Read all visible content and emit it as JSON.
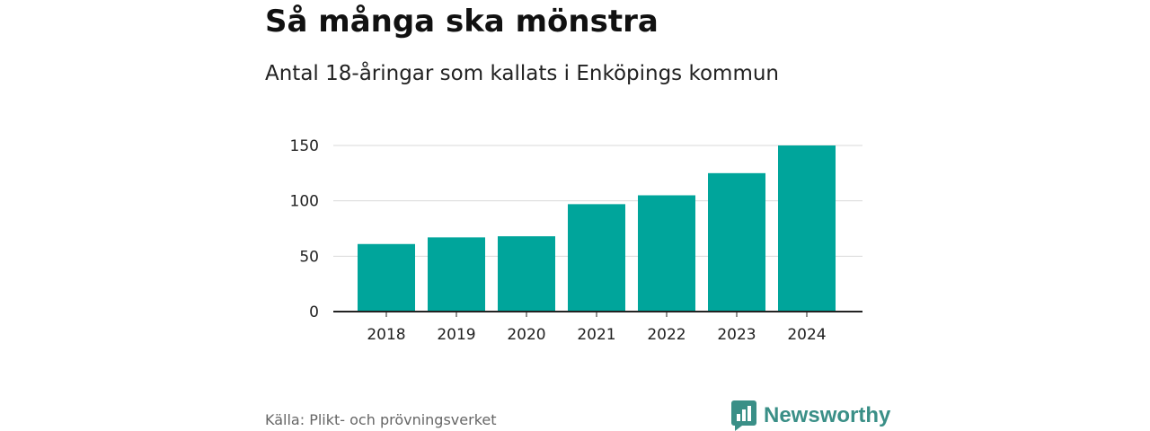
{
  "header": {
    "title": "Så många ska mönstra",
    "subtitle": "Antal 18-åringar som kallats i Enköpings kommun"
  },
  "footer": {
    "source": "Källa: Plikt- och prövningsverket",
    "brand": "Newsworthy",
    "brand_icon": "bar-chart-logo-icon"
  },
  "colors": {
    "bar": "#00a59b",
    "brand": "#3a8f87",
    "grid": "#d9d9d9",
    "axis": "#222222"
  },
  "chart_data": {
    "type": "bar",
    "categories": [
      "2018",
      "2019",
      "2020",
      "2021",
      "2022",
      "2023",
      "2024"
    ],
    "values": [
      61,
      67,
      68,
      97,
      105,
      125,
      150
    ],
    "title": "Så många ska mönstra",
    "subtitle": "Antal 18-åringar som kallats i Enköpings kommun",
    "xlabel": "",
    "ylabel": "",
    "ylim": [
      0,
      150
    ],
    "yticks": [
      0,
      50,
      100,
      150
    ],
    "grid": true,
    "legend": "none"
  }
}
